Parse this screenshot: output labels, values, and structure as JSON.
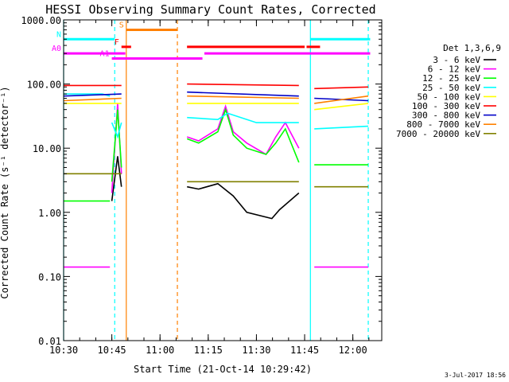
{
  "chart_data": {
    "type": "line",
    "title": "HESSI Observing Summary Count Rates, Corrected",
    "xlabel": "Start Time (21-Oct-14 10:29:42)",
    "ylabel": "Corrected Count Rate (s⁻¹ detector⁻¹)",
    "ylog": true,
    "xlim": [
      "10:30",
      "12:09"
    ],
    "ylim": [
      0.01,
      1000
    ],
    "x_ticks": [
      "10:30",
      "10:45",
      "11:00",
      "11:15",
      "11:30",
      "11:45",
      "12:00"
    ],
    "y_ticks": [
      "0.01",
      "0.10",
      "1.00",
      "10.00",
      "100.00",
      "1000.00"
    ],
    "legend_title": "Det 1,3,6,9",
    "legend_placement": "right",
    "series": [
      {
        "name": "3 - 6 keV",
        "color": "#000000",
        "segments": [
          [
            [
              10.75,
              1.5
            ],
            [
              10.78,
              7.5
            ],
            [
              10.8,
              2.5
            ]
          ],
          [
            [
              11.14,
              2.5
            ],
            [
              11.2,
              2.3
            ],
            [
              11.3,
              2.8
            ],
            [
              11.38,
              1.8
            ],
            [
              11.45,
              1.0
            ],
            [
              11.58,
              0.8
            ],
            [
              11.62,
              1.1
            ],
            [
              11.72,
              2.0
            ]
          ]
        ]
      },
      {
        "name": "6 - 12 keV",
        "color": "#ff00ff",
        "segments": [
          [
            [
              10.5,
              0.14
            ],
            [
              10.74,
              0.14
            ]
          ],
          [
            [
              10.75,
              2.0
            ],
            [
              10.78,
              50
            ],
            [
              10.8,
              4.0
            ]
          ],
          [
            [
              11.14,
              15
            ],
            [
              11.2,
              13
            ],
            [
              11.3,
              20
            ],
            [
              11.34,
              45
            ],
            [
              11.38,
              18
            ],
            [
              11.45,
              12
            ],
            [
              11.55,
              8
            ],
            [
              11.6,
              15
            ],
            [
              11.65,
              25
            ],
            [
              11.72,
              10
            ]
          ],
          [
            [
              11.8,
              0.14
            ],
            [
              12.08,
              0.14
            ]
          ]
        ]
      },
      {
        "name": "12 - 25 keV",
        "color": "#00ff00",
        "segments": [
          [
            [
              10.5,
              1.5
            ],
            [
              10.74,
              1.5
            ]
          ],
          [
            [
              10.75,
              3.0
            ],
            [
              10.78,
              40
            ],
            [
              10.8,
              5.0
            ]
          ],
          [
            [
              11.14,
              14
            ],
            [
              11.2,
              12
            ],
            [
              11.3,
              18
            ],
            [
              11.34,
              40
            ],
            [
              11.38,
              16
            ],
            [
              11.45,
              10
            ],
            [
              11.55,
              8
            ],
            [
              11.6,
              12
            ],
            [
              11.65,
              20
            ],
            [
              11.72,
              6
            ]
          ],
          [
            [
              11.8,
              5.5
            ],
            [
              12.08,
              5.5
            ]
          ]
        ]
      },
      {
        "name": "25 - 50 keV",
        "color": "#00ffff",
        "segments": [
          [
            [
              10.5,
              70
            ],
            [
              10.7,
              70
            ],
            [
              10.74,
              65
            ]
          ],
          [
            [
              10.75,
              25
            ],
            [
              10.78,
              15
            ],
            [
              10.8,
              25
            ]
          ],
          [
            [
              11.14,
              30
            ],
            [
              11.3,
              28
            ],
            [
              11.35,
              35
            ],
            [
              11.5,
              25
            ],
            [
              11.72,
              25
            ]
          ],
          [
            [
              11.8,
              20
            ],
            [
              12.08,
              22
            ]
          ]
        ]
      },
      {
        "name": "50 - 100 keV",
        "color": "#ffff00",
        "segments": [
          [
            [
              10.5,
              50
            ],
            [
              10.8,
              50
            ]
          ],
          [
            [
              11.14,
              50
            ],
            [
              11.72,
              50
            ]
          ],
          [
            [
              11.8,
              40
            ],
            [
              12.08,
              50
            ]
          ]
        ]
      },
      {
        "name": "100 - 300 keV",
        "color": "#ff0000",
        "segments": [
          [
            [
              10.5,
              95
            ],
            [
              10.8,
              95
            ]
          ],
          [
            [
              11.14,
              100
            ],
            [
              11.72,
              95
            ]
          ],
          [
            [
              11.8,
              85
            ],
            [
              12.08,
              90
            ]
          ]
        ]
      },
      {
        "name": "300 - 800 keV",
        "color": "#0000c8",
        "segments": [
          [
            [
              10.5,
              65
            ],
            [
              10.8,
              70
            ]
          ],
          [
            [
              11.14,
              75
            ],
            [
              11.72,
              65
            ]
          ],
          [
            [
              11.8,
              60
            ],
            [
              12.08,
              55
            ]
          ]
        ]
      },
      {
        "name": "800 - 7000 keV",
        "color": "#ff8000",
        "segments": [
          [
            [
              10.5,
              55
            ],
            [
              10.8,
              60
            ]
          ],
          [
            [
              11.14,
              65
            ],
            [
              11.72,
              60
            ]
          ],
          [
            [
              11.8,
              50
            ],
            [
              12.08,
              65
            ]
          ]
        ]
      },
      {
        "name": "7000 - 20000 keV",
        "color": "#808000",
        "segments": [
          [
            [
              10.5,
              4.0
            ],
            [
              10.8,
              4.0
            ]
          ],
          [
            [
              11.14,
              3.0
            ],
            [
              11.72,
              3.0
            ]
          ],
          [
            [
              11.8,
              2.5
            ],
            [
              12.08,
              2.5
            ]
          ]
        ]
      }
    ],
    "vertical_lines": [
      {
        "x": 10.5,
        "color": "#00ffff",
        "style": "solid"
      },
      {
        "x": 10.765,
        "color": "#00ffff",
        "style": "dashed"
      },
      {
        "x": 10.825,
        "color": "#ff8000",
        "style": "solid"
      },
      {
        "x": 11.09,
        "color": "#ff8000",
        "style": "dashed"
      },
      {
        "x": 11.78,
        "color": "#00ffff",
        "style": "solid"
      },
      {
        "x": 12.08,
        "color": "#00ffff",
        "style": "dashed"
      }
    ],
    "flag_bars": [
      {
        "label": "N",
        "color": "#00ffff",
        "y": 500,
        "segments": [
          [
            10.5,
            10.765
          ],
          [
            11.78,
            12.09
          ]
        ]
      },
      {
        "label": "S",
        "color": "#ff8000",
        "y": 700,
        "segments": [
          [
            10.825,
            11.09
          ]
        ]
      },
      {
        "label": "F",
        "color": "#ff0000",
        "y": 380,
        "segments": [
          [
            10.8,
            10.85
          ],
          [
            11.14,
            11.75
          ],
          [
            11.76,
            11.83
          ]
        ]
      },
      {
        "label": "A1",
        "color": "#ff00ff",
        "y": 250,
        "segments": [
          [
            10.75,
            11.22
          ]
        ]
      },
      {
        "label": "A0",
        "color": "#ff00ff",
        "y": 300,
        "segments": [
          [
            10.5,
            10.82
          ],
          [
            11.23,
            12.09
          ]
        ]
      }
    ],
    "timestamp": "3-Jul-2017 18:56"
  }
}
